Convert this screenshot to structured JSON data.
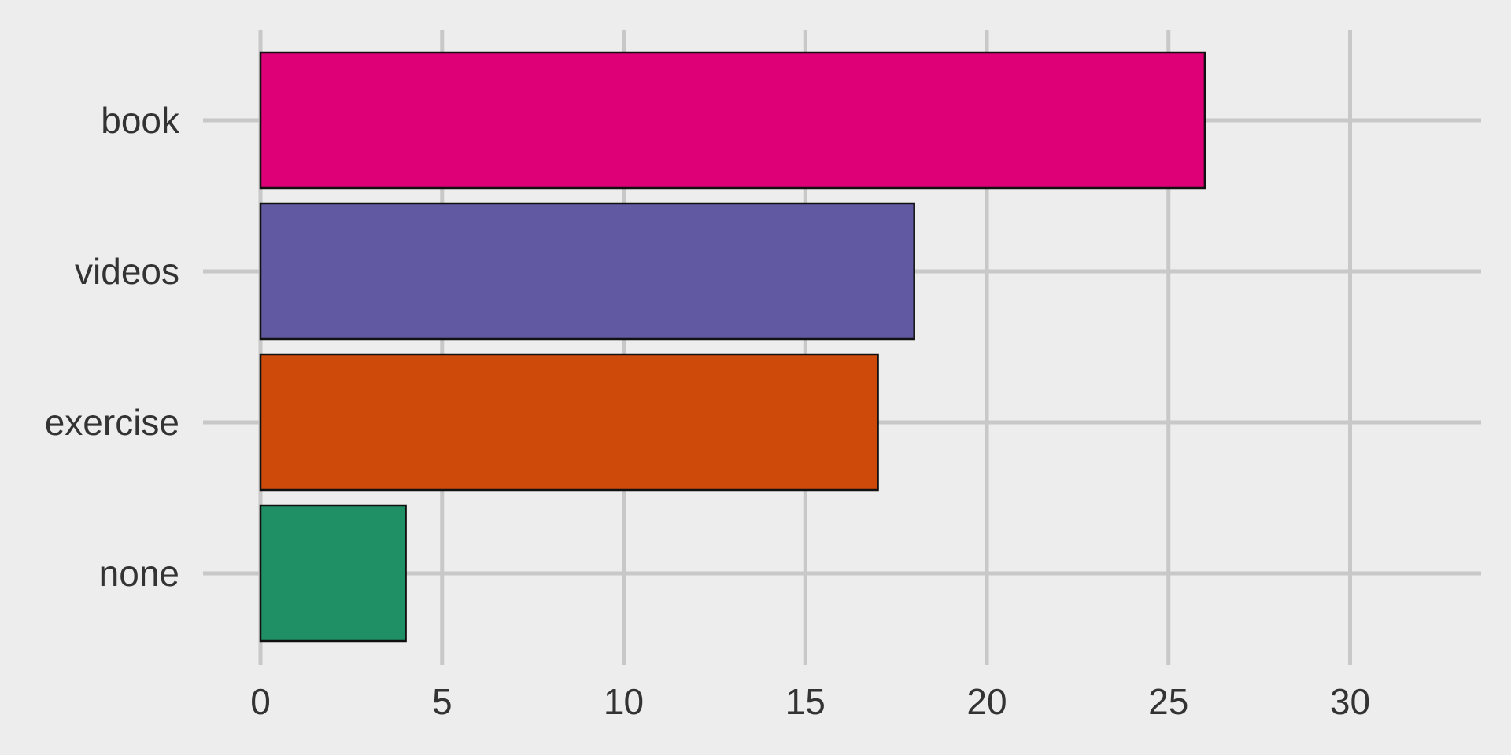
{
  "chart_data": {
    "type": "bar",
    "orientation": "horizontal",
    "title": "",
    "xlabel": "",
    "ylabel": "",
    "categories": [
      "book",
      "videos",
      "exercise",
      "none"
    ],
    "values": [
      26,
      18,
      17,
      4
    ],
    "colors": [
      "#de0077",
      "#615aa3",
      "#cd4a0a",
      "#1f9065"
    ],
    "xlim": [
      0,
      33.6
    ],
    "xticks": [
      0,
      5,
      10,
      15,
      20,
      25,
      30
    ],
    "xtick_labels": [
      "0",
      "5",
      "10",
      "15",
      "20",
      "25",
      "30"
    ],
    "grid": true,
    "legend": "none",
    "style": {
      "background": "#ededed",
      "grid_color": "#c8c8c8",
      "bar_edge": "#111111",
      "text_color": "#333333"
    }
  }
}
